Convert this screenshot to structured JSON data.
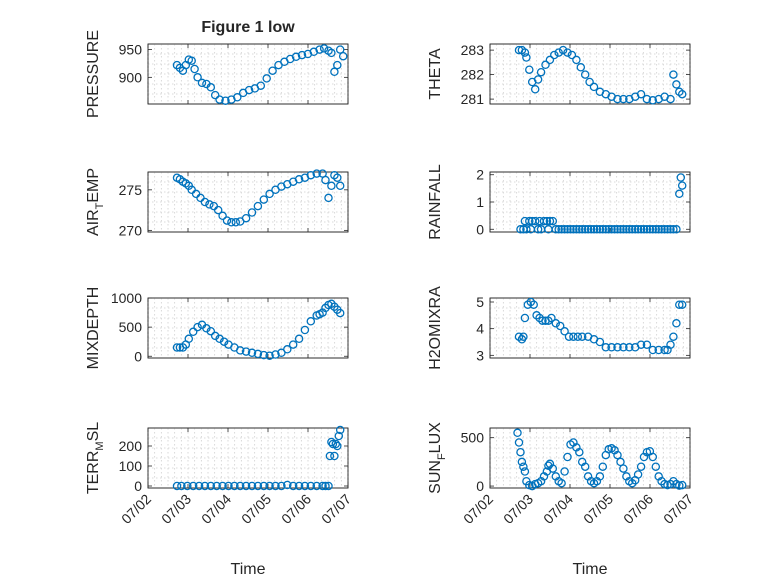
{
  "chart_data": [
    {
      "type": "scatter",
      "title": "Figure 1 low",
      "ylabel": "PRESSURE",
      "ylabel_sub": "",
      "xlabel": "",
      "yticks": [
        900,
        950
      ],
      "ylim": [
        852,
        960
      ],
      "xticklabels": [],
      "series": [
        {
          "x": [
            0.85,
            0.95,
            1.05,
            1.15,
            1.25,
            1.35,
            1.45,
            1.55,
            1.7,
            1.85,
            2.0,
            2.15,
            2.3,
            2.5,
            2.7,
            2.9,
            3.1,
            3.3,
            3.5,
            3.7,
            3.9,
            4.1,
            4.3,
            4.5,
            4.7,
            4.9,
            5.1,
            5.3,
            5.5,
            5.7,
            5.85,
            6.0,
            6.1,
            6.2,
            6.3,
            6.4,
            6.5
          ],
          "y": [
            922,
            917,
            912,
            922,
            932,
            930,
            915,
            900,
            890,
            888,
            882,
            868,
            860,
            858,
            860,
            864,
            872,
            877,
            880,
            885,
            898,
            912,
            922,
            928,
            933,
            937,
            940,
            942,
            946,
            950,
            952,
            948,
            944,
            910,
            922,
            950,
            938
          ]
        }
      ]
    },
    {
      "type": "scatter",
      "title": "",
      "ylabel": "THETA",
      "ylabel_sub": "",
      "xlabel": "",
      "yticks": [
        281,
        282,
        283
      ],
      "ylim": [
        280.8,
        283.25
      ],
      "xticklabels": [],
      "series": [
        {
          "x": [
            0.85,
            0.95,
            1.05,
            1.1,
            1.2,
            1.3,
            1.4,
            1.5,
            1.6,
            1.75,
            1.9,
            2.05,
            2.2,
            2.35,
            2.5,
            2.65,
            2.8,
            2.95,
            3.1,
            3.25,
            3.4,
            3.6,
            3.8,
            4.0,
            4.2,
            4.4,
            4.6,
            4.8,
            5.0,
            5.2,
            5.4,
            5.6,
            5.8,
            6.0,
            6.1,
            6.2,
            6.3,
            6.4
          ],
          "y": [
            283,
            283,
            282.9,
            282.7,
            282.2,
            281.7,
            281.4,
            281.8,
            282.1,
            282.4,
            282.6,
            282.8,
            282.9,
            283,
            282.9,
            282.8,
            282.6,
            282.3,
            282,
            281.7,
            281.5,
            281.3,
            281.2,
            281.1,
            281,
            281,
            281,
            281.1,
            281.2,
            281,
            280.95,
            281,
            281.1,
            281,
            282,
            281.6,
            281.3,
            281.2
          ]
        }
      ]
    },
    {
      "type": "scatter",
      "title": "",
      "ylabel": "AIR",
      "ylabel_sub": "T",
      "ylabel_tail": "EMP",
      "xlabel": "",
      "yticks": [
        270,
        275
      ],
      "ylim": [
        269.8,
        277.2
      ],
      "xticklabels": [],
      "series": [
        {
          "x": [
            0.85,
            0.95,
            1.05,
            1.15,
            1.25,
            1.35,
            1.5,
            1.65,
            1.8,
            1.95,
            2.1,
            2.25,
            2.4,
            2.55,
            2.7,
            2.85,
            3.0,
            3.2,
            3.4,
            3.6,
            3.8,
            4.0,
            4.2,
            4.4,
            4.6,
            4.8,
            5.0,
            5.2,
            5.4,
            5.6,
            5.8,
            5.9,
            6.0,
            6.1,
            6.2,
            6.3,
            6.4
          ],
          "y": [
            276.5,
            276.3,
            276,
            275.8,
            275.5,
            275,
            274.5,
            274,
            273.5,
            273.2,
            273,
            272.5,
            271.8,
            271.2,
            271,
            271,
            271.1,
            271.5,
            272.2,
            273,
            273.8,
            274.5,
            275,
            275.4,
            275.7,
            276,
            276.3,
            276.5,
            276.8,
            277,
            277,
            276.2,
            274,
            275.5,
            276.8,
            276.5,
            275.5
          ]
        }
      ]
    },
    {
      "type": "scatter",
      "title": "",
      "ylabel": "RAINFALL",
      "ylabel_sub": "",
      "xlabel": "",
      "yticks": [
        0,
        1,
        2
      ],
      "ylim": [
        -0.1,
        2.1
      ],
      "xticklabels": [],
      "series": [
        {
          "x": [
            0.9,
            1.0,
            1.05,
            1.1,
            1.2,
            1.25,
            1.3,
            1.4,
            1.5,
            1.55,
            1.6,
            1.7,
            1.8,
            1.85,
            1.9,
            2.0,
            2.1,
            2.2,
            2.3,
            2.4,
            2.5,
            2.6,
            2.7,
            2.8,
            2.9,
            3.0,
            3.1,
            3.2,
            3.3,
            3.4,
            3.5,
            3.6,
            3.7,
            3.8,
            3.9,
            4.0,
            4.1,
            4.2,
            4.3,
            4.4,
            4.5,
            4.6,
            4.7,
            4.8,
            4.9,
            5.0,
            5.1,
            5.2,
            5.3,
            5.4,
            5.5,
            5.6,
            5.7,
            5.8,
            5.9,
            6.0,
            6.1,
            6.2,
            6.3,
            6.35,
            6.4
          ],
          "y": [
            0,
            0,
            0.3,
            0,
            0.3,
            0,
            0.3,
            0.3,
            0,
            0.3,
            0,
            0.3,
            0.3,
            0,
            0.3,
            0.3,
            0,
            0,
            0,
            0,
            0,
            0,
            0,
            0,
            0,
            0,
            0,
            0,
            0,
            0,
            0,
            0,
            0,
            0,
            0,
            0,
            0,
            0,
            0,
            0,
            0,
            0,
            0,
            0,
            0,
            0,
            0,
            0,
            0,
            0,
            0,
            0,
            0,
            0,
            0,
            0,
            0,
            0,
            1.3,
            1.9,
            1.6
          ]
        }
      ]
    },
    {
      "type": "scatter",
      "title": "",
      "ylabel": "MIXDEPTH",
      "ylabel_sub": "",
      "xlabel": "",
      "yticks": [
        0,
        500,
        1000
      ],
      "ylim": [
        -30,
        1000
      ],
      "xticklabels": [],
      "series": [
        {
          "x": [
            0.85,
            0.95,
            1.05,
            1.15,
            1.25,
            1.4,
            1.55,
            1.7,
            1.85,
            2.0,
            2.15,
            2.3,
            2.45,
            2.6,
            2.8,
            3.0,
            3.2,
            3.4,
            3.6,
            3.8,
            4.0,
            4.2,
            4.4,
            4.6,
            4.8,
            5.0,
            5.2,
            5.4,
            5.6,
            5.7,
            5.8,
            5.9,
            6.0,
            6.1,
            6.2,
            6.3,
            6.4
          ],
          "y": [
            150,
            150,
            150,
            200,
            300,
            420,
            500,
            540,
            480,
            430,
            350,
            300,
            250,
            200,
            150,
            100,
            80,
            60,
            40,
            20,
            10,
            30,
            60,
            120,
            200,
            300,
            450,
            600,
            700,
            720,
            750,
            830,
            880,
            900,
            850,
            800,
            740
          ]
        }
      ]
    },
    {
      "type": "scatter",
      "title": "",
      "ylabel": "H2OMIXRA",
      "ylabel_sub": "",
      "xlabel": "",
      "yticks": [
        3,
        4,
        5
      ],
      "ylim": [
        2.9,
        5.15
      ],
      "xticklabels": [],
      "series": [
        {
          "x": [
            0.85,
            0.95,
            1.0,
            1.05,
            1.15,
            1.25,
            1.35,
            1.45,
            1.55,
            1.65,
            1.75,
            1.85,
            1.95,
            2.1,
            2.25,
            2.4,
            2.55,
            2.7,
            2.85,
            3.0,
            3.2,
            3.4,
            3.6,
            3.8,
            4.0,
            4.2,
            4.4,
            4.6,
            4.8,
            5.0,
            5.2,
            5.4,
            5.6,
            5.8,
            5.9,
            6.0,
            6.1,
            6.2,
            6.3,
            6.4
          ],
          "y": [
            3.7,
            3.6,
            3.7,
            4.4,
            4.9,
            5.0,
            4.9,
            4.5,
            4.4,
            4.3,
            4.3,
            4.3,
            4.4,
            4.2,
            4.1,
            3.9,
            3.7,
            3.7,
            3.7,
            3.7,
            3.7,
            3.6,
            3.5,
            3.3,
            3.3,
            3.3,
            3.3,
            3.3,
            3.3,
            3.4,
            3.4,
            3.2,
            3.2,
            3.2,
            3.2,
            3.4,
            3.7,
            4.2,
            4.9,
            4.9
          ]
        }
      ]
    },
    {
      "type": "scatter",
      "title": "",
      "ylabel": "TERR",
      "ylabel_sub": "M",
      "ylabel_tail": "SL",
      "xlabel": "Time",
      "yticks": [
        0,
        100,
        200
      ],
      "ylim": [
        -10,
        290
      ],
      "xticklabels": [
        "07/02",
        "07/03",
        "07/04",
        "07/05",
        "07/06",
        "07/07"
      ],
      "series": [
        {
          "x": [
            0.85,
            1.0,
            1.2,
            1.4,
            1.6,
            1.8,
            2.0,
            2.2,
            2.4,
            2.6,
            2.8,
            3.0,
            3.2,
            3.4,
            3.6,
            3.8,
            4.0,
            4.2,
            4.4,
            4.6,
            4.8,
            5.0,
            5.2,
            5.4,
            5.6,
            5.8,
            5.9,
            6.0,
            6.05,
            6.1,
            6.15,
            6.2,
            6.25,
            6.3,
            6.35,
            6.4
          ],
          "y": [
            0,
            0,
            0,
            0,
            0,
            0,
            0,
            0,
            0,
            0,
            0,
            0,
            0,
            0,
            0,
            0,
            0,
            0,
            0,
            5,
            0,
            0,
            0,
            0,
            0,
            0,
            0,
            0,
            150,
            220,
            210,
            150,
            210,
            200,
            250,
            280
          ]
        }
      ]
    },
    {
      "type": "scatter",
      "title": "",
      "ylabel": "SUN",
      "ylabel_sub": "F",
      "ylabel_tail": "LUX",
      "xlabel": "Time",
      "yticks": [
        0,
        500
      ],
      "ylim": [
        -20,
        600
      ],
      "xticklabels": [
        "07/02",
        "07/03",
        "07/04",
        "07/05",
        "07/06",
        "07/07"
      ],
      "series": [
        {
          "x": [
            0.8,
            0.85,
            0.9,
            0.95,
            1.0,
            1.05,
            1.1,
            1.2,
            1.3,
            1.4,
            1.5,
            1.6,
            1.7,
            1.8,
            1.85,
            1.9,
            2.0,
            2.1,
            2.2,
            2.3,
            2.4,
            2.5,
            2.6,
            2.7,
            2.8,
            2.9,
            3.0,
            3.1,
            3.2,
            3.3,
            3.4,
            3.5,
            3.6,
            3.7,
            3.8,
            3.9,
            4.0,
            4.1,
            4.2,
            4.3,
            4.4,
            4.5,
            4.6,
            4.7,
            4.8,
            4.9,
            5.0,
            5.1,
            5.2,
            5.3,
            5.4,
            5.5,
            5.6,
            5.7,
            5.8,
            5.9,
            6.0,
            6.1,
            6.2,
            6.3,
            6.4
          ],
          "y": [
            550,
            450,
            350,
            250,
            200,
            150,
            50,
            10,
            0,
            20,
            30,
            50,
            100,
            150,
            210,
            230,
            180,
            100,
            50,
            30,
            150,
            300,
            430,
            450,
            400,
            350,
            250,
            200,
            100,
            50,
            30,
            50,
            100,
            200,
            320,
            380,
            390,
            370,
            320,
            250,
            180,
            100,
            50,
            30,
            60,
            120,
            200,
            300,
            350,
            360,
            300,
            200,
            100,
            50,
            20,
            10,
            20,
            50,
            20,
            5,
            10
          ]
        }
      ]
    }
  ]
}
